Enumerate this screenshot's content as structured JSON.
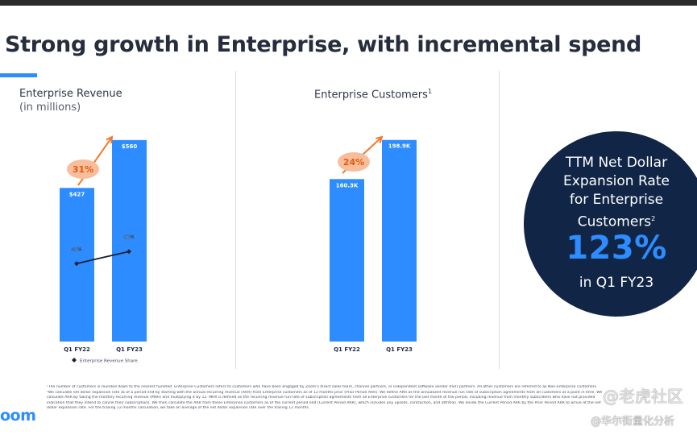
{
  "slide": {
    "title": "Strong growth in Enterprise, with incremental spend",
    "logo": "oom",
    "watermark_main": "@老虎社区",
    "watermark_sub": "@华尔街量化分析"
  },
  "revenue_panel": {
    "title": "Enterprise Revenue",
    "subtitle": "(in millions)",
    "growth_label": "31%",
    "legend": "Enterprise Revenue Share"
  },
  "customers_panel": {
    "title": "Enterprise Customers",
    "title_sup": "1",
    "growth_label": "24%"
  },
  "ndr_panel": {
    "text_lines": [
      "TTM Net Dollar",
      "Expansion Rate",
      "for Enterprise",
      "Customers"
    ],
    "text_sup": "2",
    "value": "123%",
    "period": "in Q1 FY23"
  },
  "chart_data": [
    {
      "type": "bar",
      "title": "Enterprise Revenue",
      "subtitle": "(in millions)",
      "categories": [
        "Q1 FY22",
        "Q1 FY23"
      ],
      "values": [
        427,
        560
      ],
      "value_labels": [
        "$427",
        "$560"
      ],
      "ylim": [
        0,
        600
      ],
      "annotation": "31%",
      "line_series": {
        "name": "Enterprise Revenue Share",
        "values": [
          45,
          52
        ],
        "labels": [
          "45%",
          "52%"
        ]
      },
      "colors": {
        "bar": "#2d8cff",
        "line": "#1a2233",
        "arrow": "#f07a2a",
        "badge": "#f7b58e"
      }
    },
    {
      "type": "bar",
      "title": "Enterprise Customers",
      "categories": [
        "Q1 FY22",
        "Q1 FY23"
      ],
      "values": [
        160.3,
        198.9
      ],
      "value_labels": [
        "160.3K",
        "198.9K"
      ],
      "ylim": [
        0,
        213
      ],
      "annotation": "24%",
      "colors": {
        "bar": "#2d8cff",
        "arrow": "#f07a2a",
        "badge": "#f7b58e"
      }
    }
  ],
  "footnotes": [
    "¹The number of customers is rounded down to the nearest hundred. Enterprise Customers refers to customers who have been engaged by Zoom's direct sales team, channel partners, or independent software vendor (ISV) partners. All other customers are referred to as Non-Enterprise customers.",
    "²We calculate net dollar expansion rate as of a period end by starting with the annual recurring revenue (ARR) from Enterprise customers as of 12 months prior (Prior Period ARR). We define ARR as the annualized revenue run rate of subscription agreements from all customers at a point in time. We",
    "calculate ARR by taking the monthly recurring revenue (MRR) and multiplying it by 12. MRR is defined as the recurring revenue run-rate of subscription agreements from all Enterprise customers for the last month of the period, including revenue from monthly subscribers who have not provided",
    "indication that they intend to cancel their subscriptions. We then calculate the ARR from these Enterprise customers as of the current period end (Current Period ARR), which includes any upsells, contraction, and attrition. We divide the Current Period ARR by the Prior Period ARR to arrive at the net",
    "dollar expansion rate. For the trailing 12 months calculation, we take an average of the net dollar expansion rate over the trailing 12 months."
  ]
}
